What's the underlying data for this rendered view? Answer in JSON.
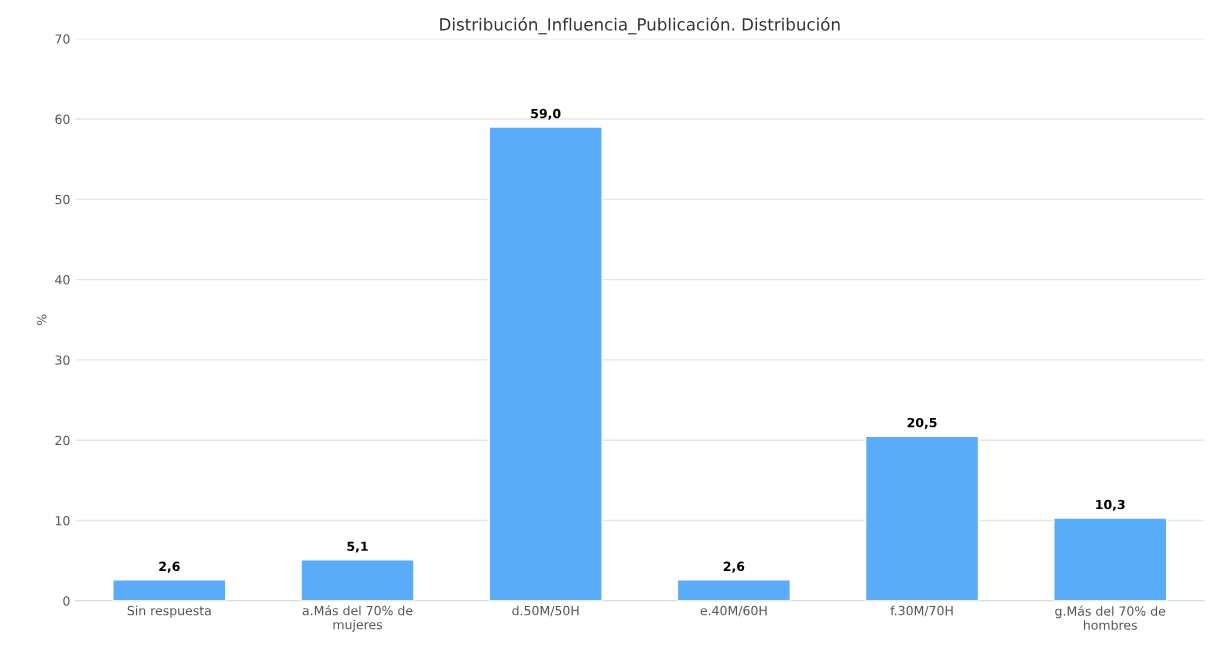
{
  "chart_data": {
    "type": "bar",
    "title": "Distribución_Influencia_Publicación. Distribución",
    "ylabel": "%",
    "categories": [
      "Sin respuesta",
      "a.Más del 70% de\nmujeres",
      "d.50M/50H",
      "e.40M/60H",
      "f.30M/70H",
      "g.Más del 70% de\nhombres"
    ],
    "values": [
      2.6,
      5.1,
      59.0,
      2.6,
      20.5,
      10.3
    ],
    "value_labels": [
      "2,6",
      "5,1",
      "59,0",
      "2,6",
      "20,5",
      "10,3"
    ],
    "color": "#5aabf8",
    "ylim": [
      0,
      70
    ],
    "yticks": [
      0,
      10,
      20,
      30,
      40,
      50,
      60,
      70
    ],
    "grid": "y",
    "legend": false
  }
}
